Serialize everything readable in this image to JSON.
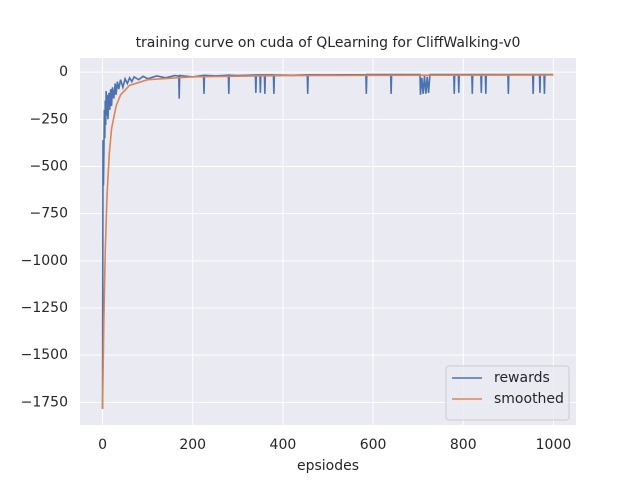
{
  "chart_data": {
    "type": "line",
    "title": "training curve on cuda of QLearning for CliffWalking-v0",
    "x_label": "epsiodes",
    "xlim": [
      -50,
      1050
    ],
    "ylim": [
      -1870,
      75
    ],
    "xticks": [
      0,
      200,
      400,
      600,
      800,
      1000
    ],
    "yticks": [
      0,
      {
        "value": -250,
        "label": "−250"
      },
      {
        "value": -500,
        "label": "−500"
      },
      {
        "value": -750,
        "label": "−750"
      },
      {
        "value": -1000,
        "label": "−1000"
      },
      {
        "value": -1250,
        "label": "−1250"
      },
      {
        "value": -1500,
        "label": "−1500"
      },
      {
        "value": -1750,
        "label": "−1750"
      }
    ],
    "grid": true,
    "legend_position": "lower right",
    "series": [
      {
        "name": "rewards",
        "color": "#4c72b0",
        "x": [
          0,
          1,
          2,
          3,
          4,
          5,
          6,
          7,
          8,
          9,
          10,
          12,
          14,
          16,
          18,
          20,
          22,
          25,
          28,
          30,
          33,
          36,
          40,
          45,
          50,
          55,
          60,
          65,
          70,
          80,
          90,
          100,
          120,
          140,
          160,
          169,
          170,
          171,
          200,
          224,
          225,
          226,
          250,
          279,
          280,
          281,
          300,
          339,
          340,
          341,
          349,
          350,
          351,
          359,
          360,
          361,
          379,
          380,
          381,
          420,
          454,
          455,
          456,
          500,
          584,
          585,
          586,
          639,
          640,
          641,
          704,
          705,
          708,
          711,
          714,
          717,
          720,
          723,
          726,
          779,
          780,
          781,
          789,
          790,
          791,
          819,
          820,
          821,
          839,
          840,
          841,
          849,
          850,
          851,
          899,
          900,
          901,
          954,
          955,
          956,
          969,
          970,
          971,
          979,
          980,
          981,
          999
        ],
        "values": [
          -1785,
          -360,
          -600,
          -420,
          -200,
          -350,
          -150,
          -280,
          -100,
          -230,
          -120,
          -250,
          -110,
          -200,
          -90,
          -180,
          -80,
          -140,
          -60,
          -120,
          -50,
          -90,
          -40,
          -80,
          -35,
          -60,
          -30,
          -50,
          -25,
          -40,
          -22,
          -35,
          -20,
          -30,
          -18,
          -20,
          -140,
          -18,
          -25,
          -17,
          -115,
          -17,
          -20,
          -16,
          -115,
          -16,
          -18,
          -15,
          -110,
          -15,
          -15,
          -110,
          -15,
          -15,
          -115,
          -15,
          -15,
          -115,
          -15,
          -17,
          -14,
          -115,
          -14,
          -15,
          -13,
          -115,
          -13,
          -13,
          -115,
          -13,
          -13,
          -120,
          -30,
          -115,
          -20,
          -115,
          -25,
          -110,
          -13,
          -13,
          -115,
          -13,
          -13,
          -110,
          -13,
          -13,
          -115,
          -13,
          -13,
          -110,
          -13,
          -13,
          -115,
          -13,
          -13,
          -115,
          -13,
          -13,
          -115,
          -13,
          -13,
          -110,
          -13,
          -13,
          -115,
          -13,
          -13
        ]
      },
      {
        "name": "smoothed",
        "color": "#dd8452",
        "x": [
          0,
          3,
          6,
          10,
          15,
          20,
          30,
          40,
          60,
          100,
          200,
          400,
          1000
        ],
        "values": [
          -1785,
          -1300,
          -950,
          -650,
          -430,
          -300,
          -180,
          -120,
          -70,
          -40,
          -25,
          -18,
          -15
        ]
      }
    ]
  }
}
